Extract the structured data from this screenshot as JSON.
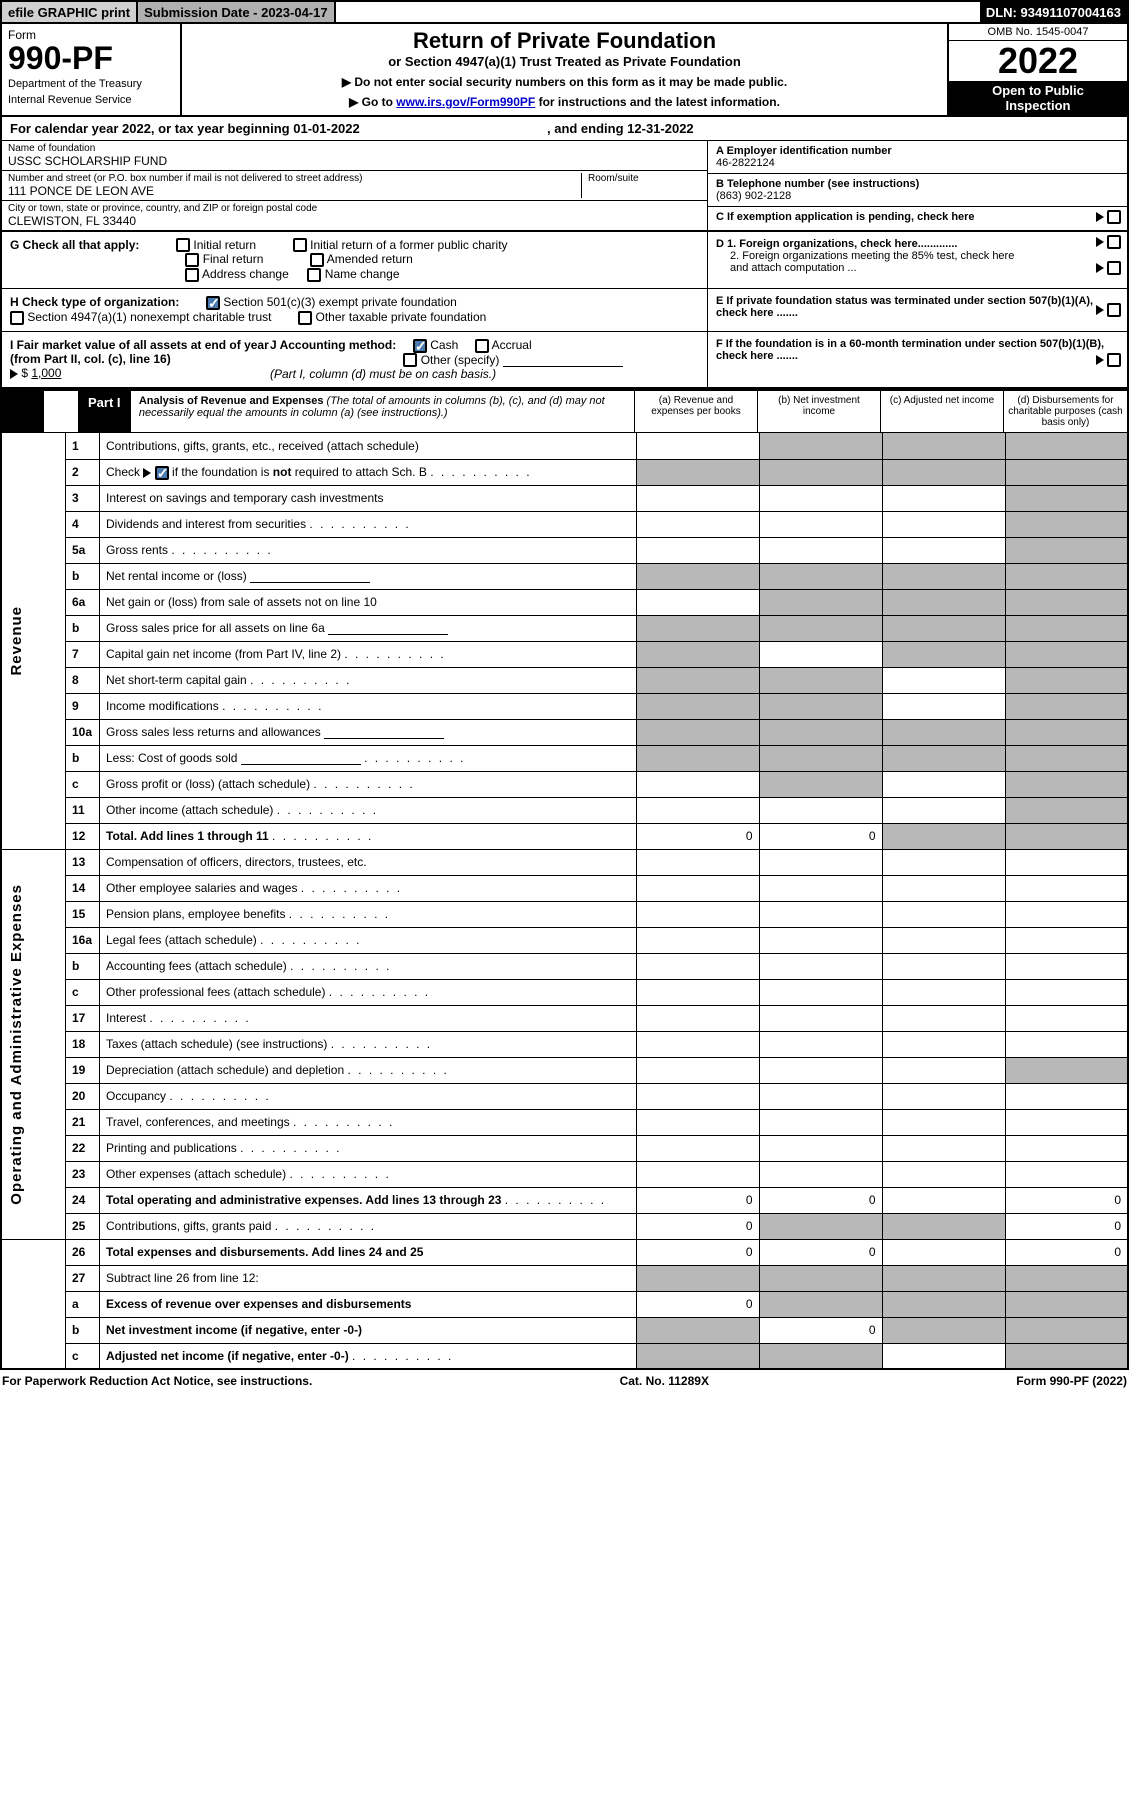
{
  "topbar": {
    "efile": "efile GRAPHIC print",
    "submission": "Submission Date - 2023-04-17",
    "dln": "DLN: 93491107004163"
  },
  "header": {
    "form_label": "Form",
    "form_number": "990-PF",
    "dept1": "Department of the Treasury",
    "dept2": "Internal Revenue Service",
    "title": "Return of Private Foundation",
    "subtitle": "or Section 4947(a)(1) Trust Treated as Private Foundation",
    "instr1": "▶ Do not enter social security numbers on this form as it may be made public.",
    "instr2_pre": "▶ Go to ",
    "instr2_link": "www.irs.gov/Form990PF",
    "instr2_post": " for instructions and the latest information.",
    "omb": "OMB No. 1545-0047",
    "year": "2022",
    "inspect1": "Open to Public",
    "inspect2": "Inspection"
  },
  "calendar": {
    "text_pre": "For calendar year 2022, or tax year beginning ",
    "begin": "01-01-2022",
    "text_mid": " , and ending ",
    "end": "12-31-2022"
  },
  "entity": {
    "name_label": "Name of foundation",
    "name": "USSC SCHOLARSHIP FUND",
    "addr_label": "Number and street (or P.O. box number if mail is not delivered to street address)",
    "addr": "111 PONCE DE LEON AVE",
    "room_label": "Room/suite",
    "city_label": "City or town, state or province, country, and ZIP or foreign postal code",
    "city": "CLEWISTON, FL  33440",
    "ein_label": "A Employer identification number",
    "ein": "46-2822124",
    "phone_label": "B Telephone number (see instructions)",
    "phone": "(863) 902-2128",
    "c_label": "C If exemption application is pending, check here",
    "d1_label": "D 1. Foreign organizations, check here.............",
    "d2_label": "2. Foreign organizations meeting the 85% test, check here and attach computation ...",
    "e_label": "E  If private foundation status was terminated under section 507(b)(1)(A), check here .......",
    "f_label": "F  If the foundation is in a 60-month termination under section 507(b)(1)(B), check here ......."
  },
  "checks": {
    "g_label": "G Check all that apply:",
    "g_opts": [
      "Initial return",
      "Initial return of a former public charity",
      "Final return",
      "Amended return",
      "Address change",
      "Name change"
    ],
    "h_label": "H Check type of organization:",
    "h_opt1": "Section 501(c)(3) exempt private foundation",
    "h_opt2": "Section 4947(a)(1) nonexempt charitable trust",
    "h_opt3": "Other taxable private foundation",
    "i_label": "I Fair market value of all assets at end of year (from Part II, col. (c), line 16)",
    "i_val": "1,000",
    "j_label": "J Accounting method:",
    "j_cash": "Cash",
    "j_accrual": "Accrual",
    "j_other": "Other (specify)",
    "j_note": "(Part I, column (d) must be on cash basis.)"
  },
  "part1": {
    "label": "Part I",
    "title": "Analysis of Revenue and Expenses",
    "title_note": "(The total of amounts in columns (b), (c), and (d) may not necessarily equal the amounts in column (a) (see instructions).)",
    "col_a": "(a)   Revenue and expenses per books",
    "col_b": "(b)   Net investment income",
    "col_c": "(c)   Adjusted net income",
    "col_d": "(d)   Disbursements for charitable purposes (cash basis only)"
  },
  "side_labels": {
    "revenue": "Revenue",
    "opex": "Operating and Administrative Expenses"
  },
  "rows": [
    {
      "n": "1",
      "desc": "Contributions, gifts, grants, etc., received (attach schedule)",
      "a": "",
      "b": "shade",
      "c": "shade",
      "d": "shade"
    },
    {
      "n": "2",
      "desc": "Check ▶ ☑ if the foundation is not required to attach Sch. B",
      "dots": true,
      "a": "shade",
      "b": "shade",
      "c": "shade",
      "d": "shade"
    },
    {
      "n": "3",
      "desc": "Interest on savings and temporary cash investments",
      "a": "",
      "b": "",
      "c": "",
      "d": "shade"
    },
    {
      "n": "4",
      "desc": "Dividends and interest from securities",
      "dots": true,
      "a": "",
      "b": "",
      "c": "",
      "d": "shade"
    },
    {
      "n": "5a",
      "desc": "Gross rents",
      "dots": true,
      "a": "",
      "b": "",
      "c": "",
      "d": "shade"
    },
    {
      "n": "b",
      "desc": "Net rental income or (loss)",
      "inline": true,
      "a": "shade",
      "b": "shade",
      "c": "shade",
      "d": "shade"
    },
    {
      "n": "6a",
      "desc": "Net gain or (loss) from sale of assets not on line 10",
      "a": "",
      "b": "shade",
      "c": "shade",
      "d": "shade"
    },
    {
      "n": "b",
      "desc": "Gross sales price for all assets on line 6a",
      "inline": true,
      "a": "shade",
      "b": "shade",
      "c": "shade",
      "d": "shade"
    },
    {
      "n": "7",
      "desc": "Capital gain net income (from Part IV, line 2)",
      "dots": true,
      "a": "shade",
      "b": "",
      "c": "shade",
      "d": "shade"
    },
    {
      "n": "8",
      "desc": "Net short-term capital gain",
      "dots": true,
      "a": "shade",
      "b": "shade",
      "c": "",
      "d": "shade"
    },
    {
      "n": "9",
      "desc": "Income modifications",
      "dots": true,
      "a": "shade",
      "b": "shade",
      "c": "",
      "d": "shade"
    },
    {
      "n": "10a",
      "desc": "Gross sales less returns and allowances",
      "inline": true,
      "a": "shade",
      "b": "shade",
      "c": "shade",
      "d": "shade"
    },
    {
      "n": "b",
      "desc": "Less: Cost of goods sold",
      "dots": true,
      "inline": true,
      "a": "shade",
      "b": "shade",
      "c": "shade",
      "d": "shade"
    },
    {
      "n": "c",
      "desc": "Gross profit or (loss) (attach schedule)",
      "dots": true,
      "a": "",
      "b": "shade",
      "c": "",
      "d": "shade"
    },
    {
      "n": "11",
      "desc": "Other income (attach schedule)",
      "dots": true,
      "a": "",
      "b": "",
      "c": "",
      "d": "shade"
    },
    {
      "n": "12",
      "desc": "Total. Add lines 1 through 11",
      "dots": true,
      "bold": true,
      "a": "0",
      "b": "0",
      "c": "shade",
      "d": "shade"
    },
    {
      "n": "13",
      "desc": "Compensation of officers, directors, trustees, etc.",
      "a": "",
      "b": "",
      "c": "",
      "d": ""
    },
    {
      "n": "14",
      "desc": "Other employee salaries and wages",
      "dots": true,
      "a": "",
      "b": "",
      "c": "",
      "d": ""
    },
    {
      "n": "15",
      "desc": "Pension plans, employee benefits",
      "dots": true,
      "a": "",
      "b": "",
      "c": "",
      "d": ""
    },
    {
      "n": "16a",
      "desc": "Legal fees (attach schedule)",
      "dots": true,
      "a": "",
      "b": "",
      "c": "",
      "d": ""
    },
    {
      "n": "b",
      "desc": "Accounting fees (attach schedule)",
      "dots": true,
      "a": "",
      "b": "",
      "c": "",
      "d": ""
    },
    {
      "n": "c",
      "desc": "Other professional fees (attach schedule)",
      "dots": true,
      "a": "",
      "b": "",
      "c": "",
      "d": ""
    },
    {
      "n": "17",
      "desc": "Interest",
      "dots": true,
      "a": "",
      "b": "",
      "c": "",
      "d": ""
    },
    {
      "n": "18",
      "desc": "Taxes (attach schedule) (see instructions)",
      "dots": true,
      "a": "",
      "b": "",
      "c": "",
      "d": ""
    },
    {
      "n": "19",
      "desc": "Depreciation (attach schedule) and depletion",
      "dots": true,
      "a": "",
      "b": "",
      "c": "",
      "d": "shade"
    },
    {
      "n": "20",
      "desc": "Occupancy",
      "dots": true,
      "a": "",
      "b": "",
      "c": "",
      "d": ""
    },
    {
      "n": "21",
      "desc": "Travel, conferences, and meetings",
      "dots": true,
      "a": "",
      "b": "",
      "c": "",
      "d": ""
    },
    {
      "n": "22",
      "desc": "Printing and publications",
      "dots": true,
      "a": "",
      "b": "",
      "c": "",
      "d": ""
    },
    {
      "n": "23",
      "desc": "Other expenses (attach schedule)",
      "dots": true,
      "a": "",
      "b": "",
      "c": "",
      "d": ""
    },
    {
      "n": "24",
      "desc": "Total operating and administrative expenses. Add lines 13 through 23",
      "dots": true,
      "bold": true,
      "a": "0",
      "b": "0",
      "c": "",
      "d": "0"
    },
    {
      "n": "25",
      "desc": "Contributions, gifts, grants paid",
      "dots": true,
      "a": "0",
      "b": "shade",
      "c": "shade",
      "d": "0"
    },
    {
      "n": "26",
      "desc": "Total expenses and disbursements. Add lines 24 and 25",
      "bold": true,
      "a": "0",
      "b": "0",
      "c": "",
      "d": "0"
    },
    {
      "n": "27",
      "desc": "Subtract line 26 from line 12:",
      "a": "shade",
      "b": "shade",
      "c": "shade",
      "d": "shade"
    },
    {
      "n": "a",
      "desc": "Excess of revenue over expenses and disbursements",
      "bold": true,
      "a": "0",
      "b": "shade",
      "c": "shade",
      "d": "shade"
    },
    {
      "n": "b",
      "desc": "Net investment income (if negative, enter -0-)",
      "bold": true,
      "a": "shade",
      "b": "0",
      "c": "shade",
      "d": "shade"
    },
    {
      "n": "c",
      "desc": "Adjusted net income (if negative, enter -0-)",
      "dots": true,
      "bold": true,
      "a": "shade",
      "b": "shade",
      "c": "",
      "d": "shade"
    }
  ],
  "footer": {
    "left": "For Paperwork Reduction Act Notice, see instructions.",
    "mid": "Cat. No. 11289X",
    "right": "Form 990-PF (2022)"
  },
  "colors": {
    "shade": "#b8b8b8",
    "link": "#0000cc",
    "check": "#4a7bb0"
  }
}
